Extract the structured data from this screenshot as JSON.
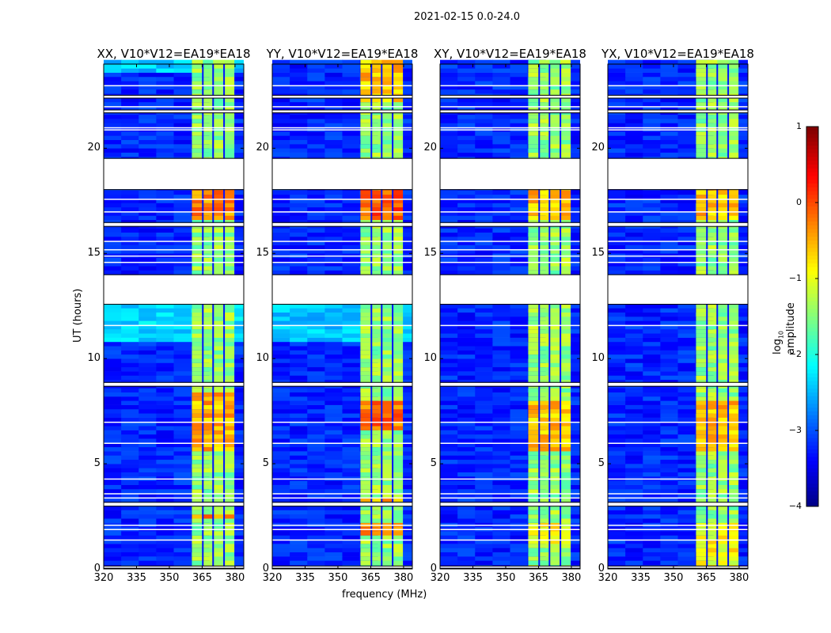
{
  "suptitle": "2021-02-15 0.0-24.0",
  "chart_data": {
    "type": "heatmap",
    "title": "2021-02-15 0.0-24.0",
    "xlabel": "frequency (MHz)",
    "ylabel": "UT (hours)",
    "xlim": [
      320,
      384
    ],
    "ylim": [
      0,
      24
    ],
    "xticks": [
      "320",
      "335",
      "350",
      "365",
      "380"
    ],
    "xtick_values": [
      320,
      335,
      350,
      365,
      380
    ],
    "yticks": [
      "0",
      "5",
      "10",
      "15",
      "20"
    ],
    "ytick_values": [
      0,
      5,
      10,
      15,
      20
    ],
    "colorbar": {
      "label_prefix": "log",
      "label_sub": "10",
      "label_suffix": " amplitude",
      "range": [
        -4,
        1
      ],
      "ticks": [
        "1",
        "0",
        "−1",
        "−2",
        "−3",
        "−4"
      ],
      "tick_values": [
        1,
        0,
        -1,
        -2,
        -3,
        -4
      ],
      "colormap": "jet"
    },
    "band_mhz": [
      360.3,
      379.7
    ],
    "subband_edges_mhz": [
      365.3,
      370,
      375
    ],
    "background_level": -3.2,
    "band_level": -1.4,
    "flagged_ut_intervals": [
      [
        18.05,
        19.5
      ],
      [
        12.6,
        13.97
      ],
      [
        8.7,
        8.85
      ],
      [
        16.3,
        16.45
      ],
      [
        22.4,
        22.5
      ],
      [
        21.7,
        21.8
      ],
      [
        3.0,
        3.15
      ],
      [
        0.05,
        0.12
      ]
    ],
    "thin_flag_lines_ut": [
      23.0,
      22.0,
      21.0,
      20.9,
      17.6,
      17.0,
      15.6,
      15.2,
      14.9,
      14.6,
      11.6,
      7.0,
      6.0,
      4.3,
      3.6,
      3.4,
      2.1,
      1.9,
      1.4
    ],
    "panels": [
      {
        "title": "XX, V10*V12=EA19*EA18",
        "bright_ut_intervals": [
          [
            16.5,
            18.05,
            -0.3
          ],
          [
            5.6,
            8.3,
            -0.5
          ],
          [
            2.3,
            2.6,
            -0.3
          ]
        ],
        "low_bg_intervals": [
          [
            10.7,
            12.6,
            -2.3
          ],
          [
            23.5,
            24,
            -2.4
          ]
        ]
      },
      {
        "title": "YY, V10*V12=EA19*EA18",
        "bright_ut_intervals": [
          [
            22.0,
            24,
            -0.6
          ],
          [
            16.5,
            18.05,
            -0.1
          ],
          [
            6.5,
            8.0,
            -0.2
          ],
          [
            1.5,
            2.0,
            -0.2
          ],
          [
            3.2,
            3.4,
            -0.4
          ]
        ],
        "low_bg_intervals": [
          [
            10.7,
            12.6,
            -2.4
          ]
        ]
      },
      {
        "title": "XY, V10*V12=EA19*EA18",
        "bright_ut_intervals": [
          [
            16.5,
            18.05,
            -0.6
          ],
          [
            5.6,
            8.0,
            -0.6
          ],
          [
            1.0,
            2.0,
            -0.9
          ]
        ],
        "low_bg_intervals": []
      },
      {
        "title": "YX, V10*V12=EA19*EA18",
        "bright_ut_intervals": [
          [
            16.5,
            18.05,
            -0.6
          ],
          [
            5.6,
            8.0,
            -0.6
          ],
          [
            0,
            2.0,
            -0.9
          ]
        ],
        "low_bg_intervals": []
      }
    ]
  }
}
